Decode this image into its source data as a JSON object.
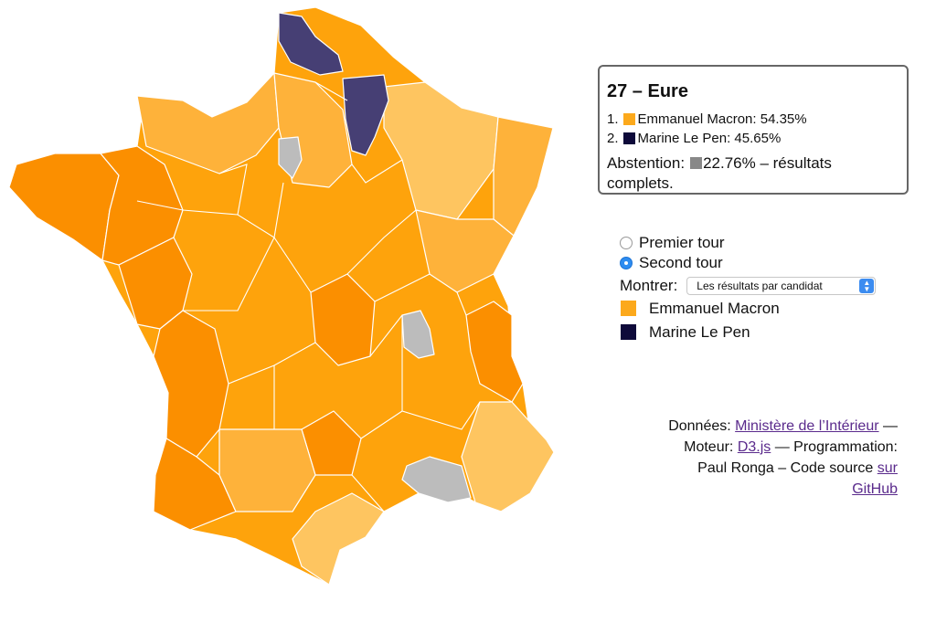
{
  "colors": {
    "macron_dark": "#fb8f00",
    "macron_mid": "#fea30c",
    "macron_light": "#feb23a",
    "macron_pale": "#fec560",
    "lepen": "#463f74",
    "no_data": "#bcbcbc",
    "lepen_legend": "#0e0a3a",
    "abstention_swatch": "#888888"
  },
  "info": {
    "title": "27 – Eure",
    "results": [
      {
        "rank": "1.",
        "text": "Emmanuel Macron: 54.35%",
        "color": "#fca91c"
      },
      {
        "rank": "2.",
        "text": "Marine Le Pen: 45.65%",
        "color": "#0e0a3a"
      }
    ],
    "abstention_label": "Abstention:",
    "abstention_value": "22.76% – résultats complets."
  },
  "controls": {
    "rounds": [
      {
        "label": "Premier tour",
        "checked": false
      },
      {
        "label": "Second tour",
        "checked": true
      }
    ],
    "show_label": "Montrer:",
    "show_selected": "Les résultats par candidat",
    "legend": [
      {
        "label": "Emmanuel Macron",
        "color": "#fca91c"
      },
      {
        "label": "Marine Le Pen",
        "color": "#0e0a3a"
      }
    ]
  },
  "credits": {
    "data_label": "Données:",
    "data_link": "Ministère de l’Intérieur",
    "engine_label": "— Moteur:",
    "engine_link": "D3.js",
    "programming": "— Programmation: Paul Ronga –",
    "source_label": "Code source",
    "source_link": "sur GitHub"
  }
}
